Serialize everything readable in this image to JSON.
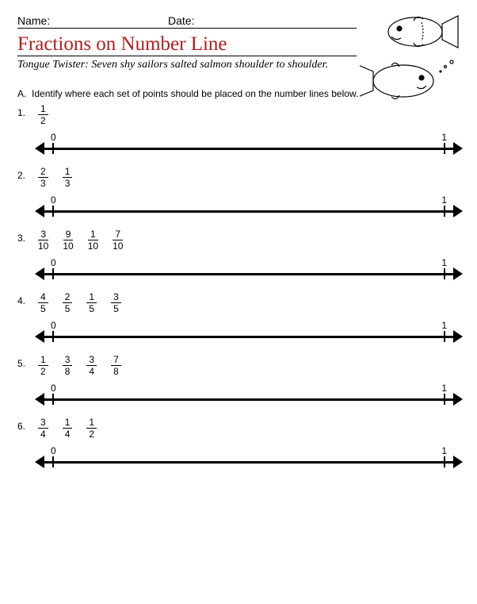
{
  "header": {
    "name_label": "Name:",
    "date_label": "Date:"
  },
  "title": "Fractions on Number Line",
  "tongue_twister": "Tongue Twister: Seven shy sailors salted salmon shoulder to shoulder.",
  "section_letter": "A.",
  "instruction": "Identify where each set of points should be placed on the number lines below.",
  "numberline": {
    "start_label": "0",
    "end_label": "1"
  },
  "problems": [
    {
      "n": "1.",
      "fractions": [
        {
          "num": "1",
          "den": "2"
        }
      ]
    },
    {
      "n": "2.",
      "fractions": [
        {
          "num": "2",
          "den": "3"
        },
        {
          "num": "1",
          "den": "3"
        }
      ]
    },
    {
      "n": "3.",
      "fractions": [
        {
          "num": "3",
          "den": "10"
        },
        {
          "num": "9",
          "den": "10"
        },
        {
          "num": "1",
          "den": "10"
        },
        {
          "num": "7",
          "den": "10"
        }
      ]
    },
    {
      "n": "4.",
      "fractions": [
        {
          "num": "4",
          "den": "5"
        },
        {
          "num": "2",
          "den": "5"
        },
        {
          "num": "1",
          "den": "5"
        },
        {
          "num": "3",
          "den": "5"
        }
      ]
    },
    {
      "n": "5.",
      "fractions": [
        {
          "num": "1",
          "den": "2"
        },
        {
          "num": "3",
          "den": "8"
        },
        {
          "num": "3",
          "den": "4"
        },
        {
          "num": "7",
          "den": "8"
        }
      ]
    },
    {
      "n": "6.",
      "fractions": [
        {
          "num": "3",
          "den": "4"
        },
        {
          "num": "1",
          "den": "4"
        },
        {
          "num": "1",
          "den": "2"
        }
      ]
    }
  ],
  "colors": {
    "title": "#b02020",
    "line": "#000000",
    "text": "#000000",
    "background": "#ffffff"
  }
}
